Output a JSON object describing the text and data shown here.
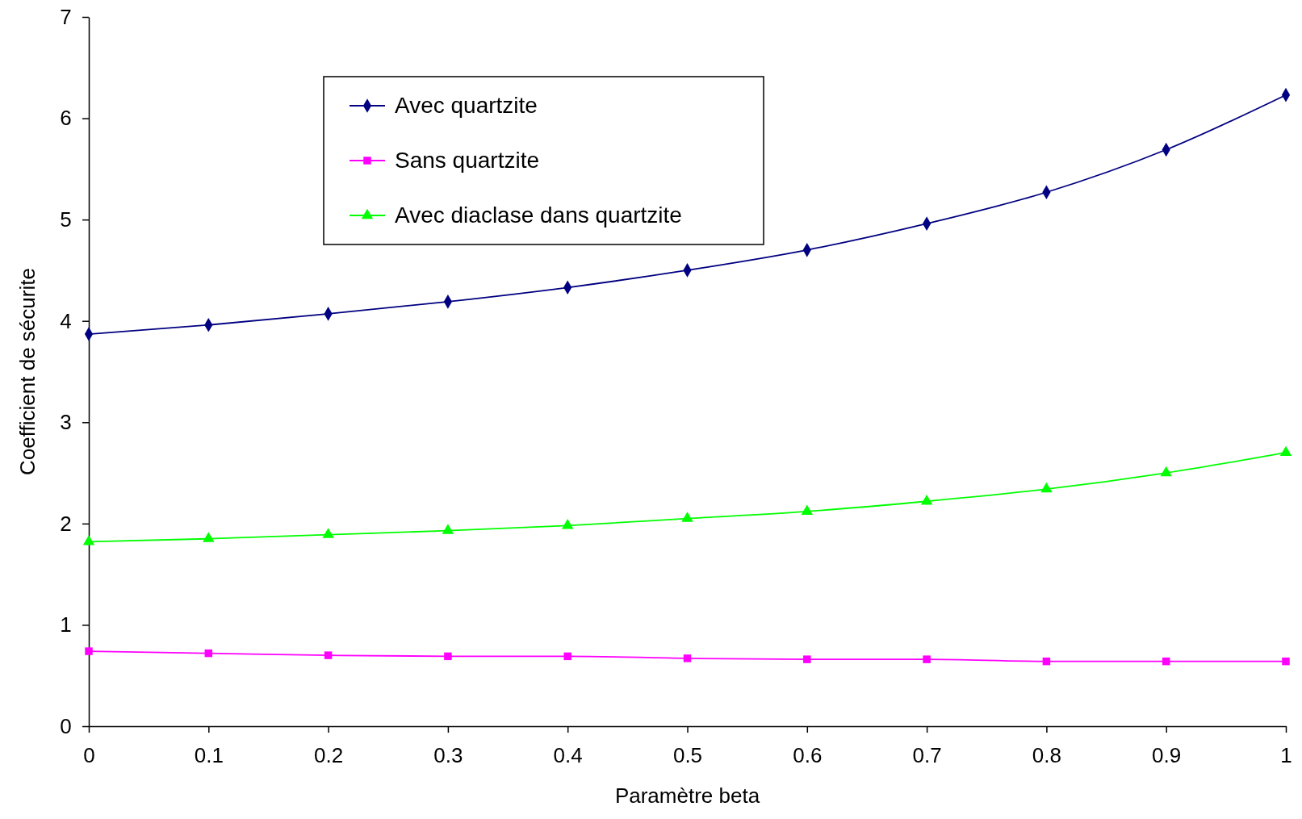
{
  "chart_data": {
    "type": "line",
    "xlabel": "Paramètre beta",
    "ylabel": "Coefficient de sécurite",
    "x": [
      0,
      0.1,
      0.2,
      0.3,
      0.4,
      0.5,
      0.6,
      0.7,
      0.8,
      0.9,
      1
    ],
    "xlim": [
      0,
      1
    ],
    "xticks": [
      0,
      0.1,
      0.2,
      0.3,
      0.4,
      0.5,
      0.6,
      0.7,
      0.8,
      0.9,
      1
    ],
    "ylim": [
      0,
      7
    ],
    "yticks": [
      0,
      1,
      2,
      3,
      4,
      5,
      6,
      7
    ],
    "grid": false,
    "legend": "top left",
    "line_style": "solid",
    "series": [
      {
        "name": "Avec quartzite",
        "color": "#000080",
        "marker": "diamond",
        "values": [
          3.87,
          3.96,
          4.07,
          4.19,
          4.33,
          4.5,
          4.7,
          4.96,
          5.27,
          5.69,
          6.23
        ]
      },
      {
        "name": "Sans quartzite",
        "color": "#ff00ff",
        "marker": "square",
        "values": [
          0.74,
          0.72,
          0.7,
          0.69,
          0.69,
          0.67,
          0.66,
          0.66,
          0.64,
          0.64,
          0.64
        ]
      },
      {
        "name": "Avec diaclase dans quartzite",
        "color": "#00ff00",
        "marker": "triangle",
        "values": [
          1.82,
          1.85,
          1.89,
          1.93,
          1.98,
          2.05,
          2.12,
          2.22,
          2.34,
          2.5,
          2.7
        ]
      }
    ]
  }
}
